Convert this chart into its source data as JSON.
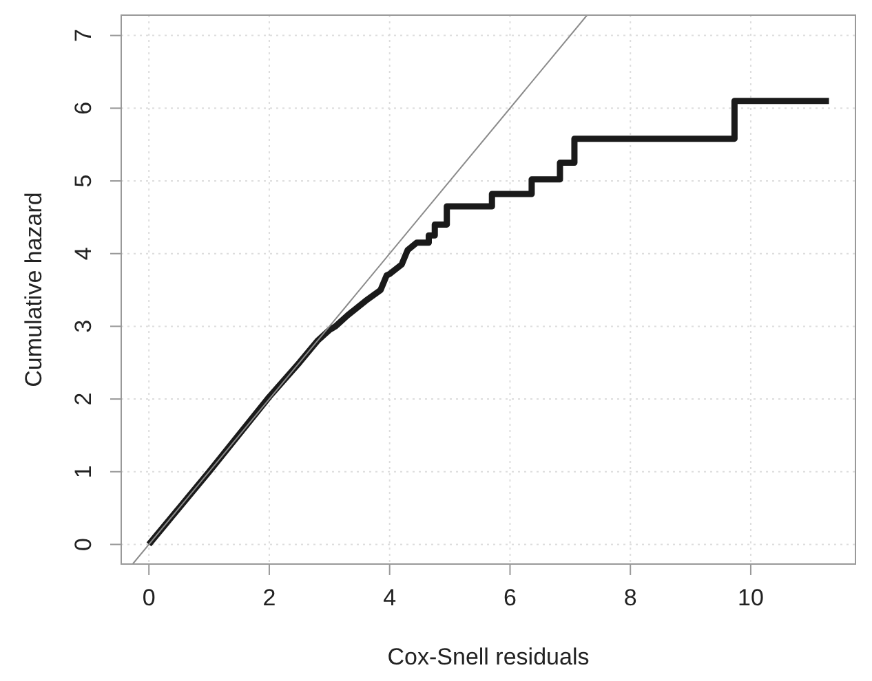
{
  "chart_data": {
    "type": "line",
    "xlabel": "Cox-Snell residuals",
    "ylabel": "Cumulative hazard",
    "xlim": [
      -0.46,
      11.74
    ],
    "ylim": [
      -0.27,
      7.28
    ],
    "xticks": [
      0,
      2,
      4,
      6,
      8,
      10
    ],
    "yticks": [
      0,
      1,
      2,
      3,
      4,
      5,
      6,
      7
    ],
    "grid": true,
    "series": [
      {
        "color": "#1a1a1a",
        "x": [
          0,
          1,
          2,
          2.5,
          2.8,
          3.0,
          3.1,
          3.3,
          3.6,
          3.85,
          3.95,
          4.0,
          4.2,
          4.3,
          4.45,
          4.65,
          4.65,
          4.75,
          4.75,
          4.95,
          4.95,
          5.7,
          5.7,
          6.36,
          6.36,
          6.83,
          6.83,
          7.07,
          7.07,
          9.73,
          9.73,
          11.3
        ],
        "values": [
          0,
          1,
          2.03,
          2.5,
          2.8,
          2.95,
          3.0,
          3.15,
          3.35,
          3.5,
          3.7,
          3.72,
          3.85,
          4.05,
          4.15,
          4.15,
          4.25,
          4.25,
          4.4,
          4.4,
          4.65,
          4.65,
          4.82,
          4.82,
          5.02,
          5.02,
          5.25,
          5.25,
          5.58,
          5.58,
          6.1,
          6.1
        ]
      },
      {
        "type": "line",
        "color": "#8a8a8a",
        "x": [
          -0.27,
          7.28
        ],
        "values": [
          -0.27,
          7.28
        ]
      }
    ]
  }
}
